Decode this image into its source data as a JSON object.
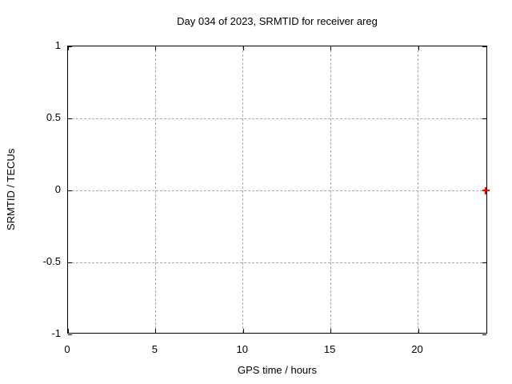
{
  "chart_data": {
    "type": "scatter",
    "title": "Day 034 of 2023, SRMTID for receiver areg",
    "xlabel": "GPS time / hours",
    "ylabel": "SRMTID / TECUs",
    "xlim": [
      0,
      24
    ],
    "ylim": [
      -1,
      1
    ],
    "xticks": [
      {
        "value": 0,
        "label": "0"
      },
      {
        "value": 5,
        "label": "5"
      },
      {
        "value": 10,
        "label": "10"
      },
      {
        "value": 15,
        "label": "15"
      },
      {
        "value": 20,
        "label": "20"
      }
    ],
    "yticks": [
      {
        "value": 1,
        "label": "1"
      },
      {
        "value": 0.5,
        "label": "0.5"
      },
      {
        "value": 0,
        "label": "0"
      },
      {
        "value": -0.5,
        "label": "-0.5"
      },
      {
        "value": -1,
        "label": "-1"
      }
    ],
    "grid": true,
    "legend": "none",
    "colors": {
      "background": "#ffffff",
      "border": "#000000",
      "grid": "#aaaaaa",
      "text": "#000000"
    },
    "series": [
      {
        "name": "SRMTID",
        "marker": "plus",
        "color": "#ff0000",
        "points": [
          {
            "x": 23.87,
            "y": 0
          }
        ]
      }
    ]
  }
}
